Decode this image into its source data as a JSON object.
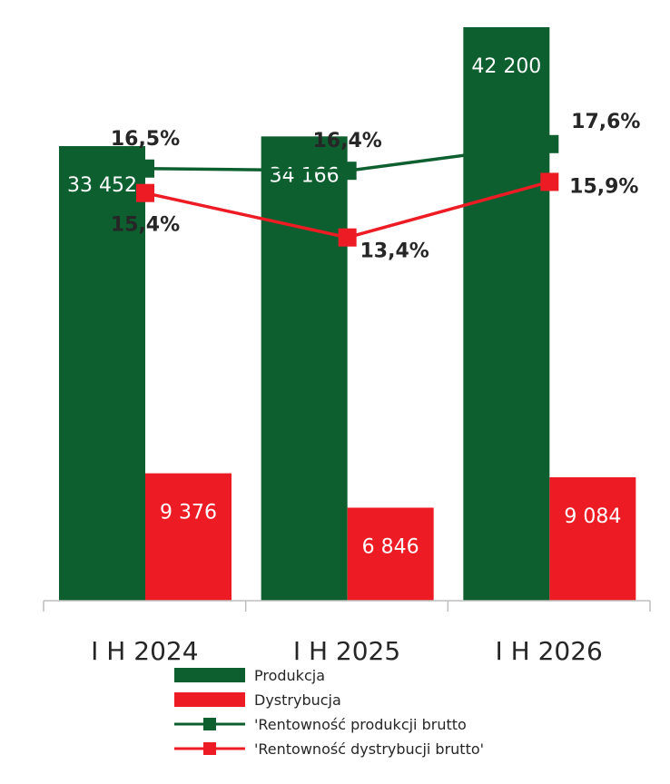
{
  "chart_data": {
    "type": "bar",
    "categories": [
      "I H 2024",
      "I H 2025",
      "I H 2026"
    ],
    "series": [
      {
        "name": "Produkcja",
        "kind": "bar",
        "values": [
          33452,
          34166,
          42200
        ],
        "labels": [
          "33 452",
          "34 166",
          "42 200"
        ],
        "color": "#0e5f30"
      },
      {
        "name": "Dystrybucja",
        "kind": "bar",
        "values": [
          9376,
          6846,
          9084
        ],
        "labels": [
          "9 376",
          "6 846",
          "9 084"
        ],
        "color": "#ed1c24"
      },
      {
        "name": "'Rentowność produkcji brutto",
        "kind": "line",
        "values": [
          16.5,
          16.4,
          17.6
        ],
        "labels": [
          "16,5%",
          "16,4%",
          "17,6%"
        ],
        "color": "#0e5f30"
      },
      {
        "name": "'Rentowność dystrybucji brutto'",
        "kind": "line",
        "values": [
          15.4,
          13.4,
          15.9
        ],
        "labels": [
          "15,4%",
          "13,4%",
          "15,9%"
        ],
        "color": "#ed1c24"
      }
    ],
    "title": "",
    "xlabel": "",
    "ylabel": "",
    "ylim": [
      0,
      45000
    ],
    "y2lim": [
      0,
      21
    ],
    "grid": false,
    "legend_position": "bottom"
  }
}
